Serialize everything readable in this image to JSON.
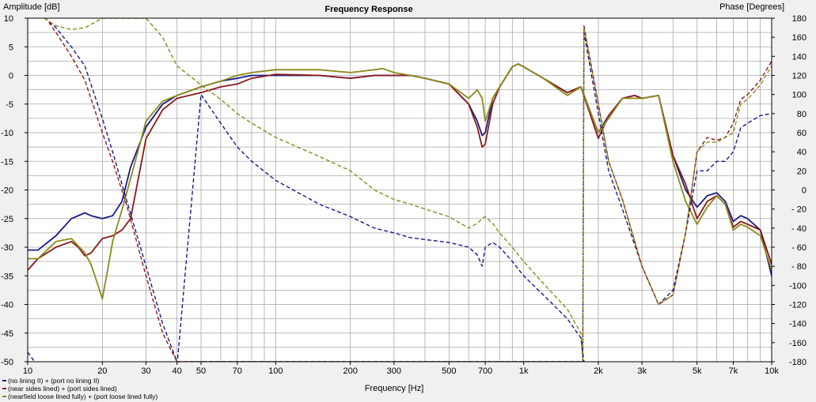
{
  "chart_data": {
    "type": "line",
    "title": "Frequency Response",
    "xlabel": "Frequency [Hz]",
    "ylabel_left": "Amplitude [dB]",
    "ylabel_right": "Phase [Degrees]",
    "xscale": "log",
    "xlim": [
      10,
      10000
    ],
    "ylim_left": [
      -50,
      10
    ],
    "ylim_right": [
      -180,
      180
    ],
    "grid": true,
    "legend_position": "bottom-left",
    "x_ticks": [
      {
        "v": 10,
        "label": "10"
      },
      {
        "v": 20,
        "label": "20"
      },
      {
        "v": 30,
        "label": "30"
      },
      {
        "v": 40,
        "label": "40"
      },
      {
        "v": 50,
        "label": "50"
      },
      {
        "v": 70,
        "label": "70"
      },
      {
        "v": 100,
        "label": "100"
      },
      {
        "v": 200,
        "label": "200"
      },
      {
        "v": 300,
        "label": "300"
      },
      {
        "v": 500,
        "label": "500"
      },
      {
        "v": 700,
        "label": "700"
      },
      {
        "v": 1000,
        "label": "1k"
      },
      {
        "v": 2000,
        "label": "2k"
      },
      {
        "v": 3000,
        "label": "3k"
      },
      {
        "v": 5000,
        "label": "5k"
      },
      {
        "v": 7000,
        "label": "7k"
      },
      {
        "v": 10000,
        "label": "10k"
      }
    ],
    "y_left_ticks": [
      {
        "v": 10,
        "label": "10"
      },
      {
        "v": 5,
        "label": "5"
      },
      {
        "v": 0,
        "label": "0"
      },
      {
        "v": -5,
        "label": "-5"
      },
      {
        "v": -10,
        "label": "-10"
      },
      {
        "v": -15,
        "label": "-15"
      },
      {
        "v": -20,
        "label": "-20"
      },
      {
        "v": -25,
        "label": "-25"
      },
      {
        "v": -30,
        "label": "-30"
      },
      {
        "v": -35,
        "label": "-35"
      },
      {
        "v": -40,
        "label": "-40"
      },
      {
        "v": -45,
        "label": "-45"
      },
      {
        "v": -50,
        "label": "-50"
      }
    ],
    "y_right_ticks": [
      {
        "v": 180,
        "label": "180"
      },
      {
        "v": 160,
        "label": "160"
      },
      {
        "v": 140,
        "label": "140"
      },
      {
        "v": 120,
        "label": "120"
      },
      {
        "v": 100,
        "label": "100"
      },
      {
        "v": 80,
        "label": "80"
      },
      {
        "v": 60,
        "label": "60"
      },
      {
        "v": 40,
        "label": "40"
      },
      {
        "v": 20,
        "label": "20"
      },
      {
        "v": 0,
        "label": "0"
      },
      {
        "v": -20,
        "label": "- 20"
      },
      {
        "v": -40,
        "label": "- 40"
      },
      {
        "v": -60,
        "label": "- 60"
      },
      {
        "v": -80,
        "label": "- 80"
      },
      {
        "v": -100,
        "label": "-100"
      },
      {
        "v": -120,
        "label": "-120"
      },
      {
        "v": -140,
        "label": "-140"
      },
      {
        "v": -160,
        "label": "-160"
      },
      {
        "v": -180,
        "label": "-180"
      }
    ],
    "legend": [
      {
        "label": "(no lining II) + (port no lining II)",
        "color": "#1a1a8c"
      },
      {
        "label": "(near sides lined) + (port sides lined)",
        "color": "#8b1a1a"
      },
      {
        "label": "(nearfield loose lined fully) + (port loose lined fully)",
        "color": "#8c8a1a"
      }
    ],
    "series": [
      {
        "color": "#1a1a8c",
        "style": "solid",
        "axis": "amplitude",
        "x": [
          10,
          11,
          13,
          15,
          17,
          18,
          20,
          22,
          24,
          26,
          30,
          35,
          40,
          50,
          60,
          70,
          80,
          100,
          150,
          200,
          250,
          300,
          350,
          400,
          500,
          600,
          650,
          680,
          700,
          750,
          800,
          900,
          950,
          1000,
          1200,
          1500,
          1700,
          2000,
          2200,
          2500,
          2800,
          3000,
          3500,
          4000,
          4500,
          5000,
          5500,
          6000,
          6500,
          7000,
          7500,
          8000,
          9000,
          10000
        ],
        "y": [
          -30.5,
          -30.5,
          -28,
          -25,
          -24,
          -24.5,
          -25,
          -24.5,
          -22,
          -16,
          -9,
          -5,
          -3.5,
          -2,
          -1,
          -0.5,
          0,
          0,
          0,
          -0.5,
          0,
          0,
          0,
          -0.5,
          -1.5,
          -5,
          -8,
          -10.5,
          -10,
          -4,
          -2,
          1.5,
          2,
          1.5,
          -0.5,
          -3,
          -2,
          -10,
          -7,
          -4,
          -3.5,
          -4,
          -3.5,
          -14,
          -20,
          -23,
          -21,
          -20.5,
          -22,
          -25.5,
          -24.5,
          -25,
          -27,
          -35
        ]
      },
      {
        "color": "#8b1a1a",
        "style": "solid",
        "axis": "amplitude",
        "x": [
          10,
          11,
          13,
          15,
          16,
          17,
          18,
          20,
          22,
          24,
          26,
          30,
          35,
          40,
          50,
          60,
          70,
          80,
          100,
          150,
          200,
          250,
          300,
          350,
          400,
          500,
          600,
          650,
          680,
          700,
          750,
          800,
          900,
          950,
          1000,
          1200,
          1500,
          1700,
          2000,
          2200,
          2500,
          2800,
          3000,
          3500,
          4000,
          4500,
          5000,
          5500,
          6000,
          6500,
          7000,
          7500,
          8000,
          9000,
          10000
        ],
        "y": [
          -34,
          -32,
          -30,
          -29,
          -30,
          -31.5,
          -31,
          -28.5,
          -28,
          -27,
          -25,
          -11,
          -6,
          -4,
          -3,
          -2,
          -1.5,
          -0.5,
          0.2,
          0,
          -0.5,
          0,
          0,
          0,
          -0.5,
          -1.5,
          -5,
          -9,
          -12.5,
          -12,
          -5,
          -2,
          1.5,
          2,
          1.5,
          -0.5,
          -3,
          -2,
          -11,
          -7,
          -4,
          -3.5,
          -4,
          -3.5,
          -14,
          -19,
          -25,
          -22,
          -21,
          -22.5,
          -26.5,
          -25.5,
          -26,
          -27,
          -33
        ]
      },
      {
        "color": "#8c8a1a",
        "style": "solid",
        "axis": "amplitude",
        "x": [
          10,
          11,
          13,
          15,
          17,
          18,
          19,
          20,
          21,
          22,
          24,
          26,
          30,
          35,
          40,
          50,
          60,
          70,
          80,
          100,
          150,
          200,
          250,
          270,
          300,
          350,
          400,
          500,
          600,
          650,
          680,
          700,
          750,
          800,
          900,
          950,
          1000,
          1200,
          1500,
          1700,
          2000,
          2200,
          2500,
          2800,
          3000,
          3500,
          4000,
          4500,
          5000,
          5500,
          6000,
          6500,
          7000,
          7500,
          8000,
          9000,
          10000
        ],
        "y": [
          -32,
          -32,
          -29,
          -28.5,
          -31,
          -33,
          -36,
          -39,
          -34,
          -29,
          -23.5,
          -18,
          -8,
          -4.5,
          -3.5,
          -2,
          -1,
          0,
          0.5,
          1,
          1,
          0.5,
          1,
          1.2,
          0.5,
          0,
          -0.5,
          -1.5,
          -4,
          -2.5,
          -4,
          -8,
          -4,
          -2,
          1.5,
          2,
          1.5,
          -0.5,
          -3.5,
          -2,
          -10,
          -7.5,
          -4,
          -4,
          -4,
          -3.5,
          -15,
          -22,
          -26,
          -23,
          -21,
          -22.5,
          -27,
          -26,
          -26.5,
          -28,
          -34
        ]
      },
      {
        "color": "#1a1a8c",
        "style": "dashed",
        "axis": "phase",
        "x": [
          10,
          11,
          12,
          13,
          15,
          17,
          20,
          22,
          25,
          30,
          35,
          40,
          50,
          60,
          70,
          80,
          100,
          150,
          200,
          250,
          300,
          350,
          400,
          500,
          600,
          650,
          680,
          700,
          750,
          800,
          900,
          1000,
          1200,
          1500,
          1700,
          1730,
          1750,
          2000,
          2200,
          2500,
          3000,
          3500,
          4000,
          4500,
          5000,
          5500,
          6000,
          6500,
          7000,
          7500,
          8000,
          9000,
          10000
        ],
        "y": [
          180,
          185,
          178,
          170,
          150,
          130,
          75,
          40,
          -10,
          -80,
          -140,
          -180,
          -180,
          -180,
          -180,
          -180,
          -180,
          -180,
          -180,
          -180,
          -180,
          -180,
          -180,
          -180,
          -180,
          -180,
          -180,
          -180,
          -180,
          -180,
          -180,
          -180,
          -180,
          -180,
          -180,
          -180,
          165,
          80,
          20,
          -20,
          -80,
          -120,
          -105,
          -45,
          20,
          20,
          30,
          30,
          40,
          65,
          70,
          78,
          80
        ]
      },
      {
        "color": "#8b1a1a",
        "style": "dashed",
        "axis": "phase",
        "x": [
          10,
          11,
          12,
          13,
          15,
          17,
          20,
          22,
          25,
          30,
          35,
          40,
          50,
          60,
          70,
          80,
          100,
          150,
          200,
          250,
          300,
          350,
          400,
          500,
          600,
          650,
          680,
          700,
          750,
          800,
          900,
          1000,
          1200,
          1500,
          1700,
          1730,
          1750,
          2000,
          2200,
          2500,
          3000,
          3500,
          4000,
          4500,
          5000,
          5500,
          6000,
          6500,
          7000,
          7500,
          8000,
          9000,
          10000
        ],
        "y": [
          180,
          185,
          178,
          165,
          140,
          115,
          60,
          30,
          -15,
          -90,
          -150,
          -180,
          -180,
          -180,
          -180,
          -180,
          -180,
          -180,
          -180,
          -180,
          -180,
          -180,
          -180,
          -180,
          -180,
          -180,
          -180,
          -180,
          -180,
          -180,
          -180,
          -180,
          -180,
          -180,
          -180,
          -180,
          172,
          90,
          30,
          -10,
          -80,
          -120,
          -110,
          -45,
          40,
          55,
          52,
          55,
          70,
          95,
          100,
          115,
          135
        ]
      },
      {
        "color": "#8c8a1a",
        "style": "dashed",
        "axis": "phase",
        "x": [
          10,
          11,
          12,
          13,
          15,
          17,
          20,
          22,
          25,
          30,
          35,
          40,
          50,
          60,
          70,
          80,
          100,
          150,
          200,
          250,
          300,
          350,
          400,
          500,
          600,
          650,
          680,
          700,
          750,
          800,
          900,
          1000,
          1200,
          1500,
          1700,
          1730,
          1750,
          2000,
          2200,
          2500,
          3000,
          3500,
          4000,
          4500,
          5000,
          5500,
          6000,
          6500,
          7000,
          7500,
          8000,
          9000,
          10000
        ],
        "y": [
          180,
          185,
          178,
          172,
          168,
          170,
          180,
          180,
          180,
          180,
          160,
          130,
          110,
          95,
          80,
          70,
          55,
          35,
          20,
          0,
          -10,
          -15,
          -20,
          -28,
          -40,
          -35,
          -30,
          -28,
          -35,
          -45,
          -60,
          -75,
          -98,
          -125,
          -150,
          -180,
          170,
          90,
          30,
          -10,
          -80,
          -120,
          -110,
          -45,
          40,
          50,
          50,
          55,
          60,
          90,
          95,
          110,
          130
        ]
      },
      {
        "color": "#1a1a8c",
        "style": "dashed",
        "axis": "phase_low",
        "x": [
          10,
          11,
          12,
          13,
          15,
          17,
          20,
          22,
          25,
          30,
          35,
          40,
          50,
          60,
          70,
          80,
          100,
          150,
          200,
          250,
          300,
          350,
          400,
          500,
          600,
          650,
          680,
          700,
          750,
          800,
          900,
          1000,
          1200,
          1500,
          1700,
          1750
        ],
        "y": [
          -170,
          -185,
          -185,
          -185,
          -185,
          -185,
          -185,
          -185,
          -185,
          -185,
          -185,
          -185,
          100,
          70,
          45,
          30,
          10,
          -15,
          -28,
          -40,
          -45,
          -50,
          -52,
          -55,
          -60,
          -68,
          -80,
          -60,
          -55,
          -60,
          -75,
          -90,
          -110,
          -135,
          -155,
          -180
        ]
      }
    ]
  }
}
